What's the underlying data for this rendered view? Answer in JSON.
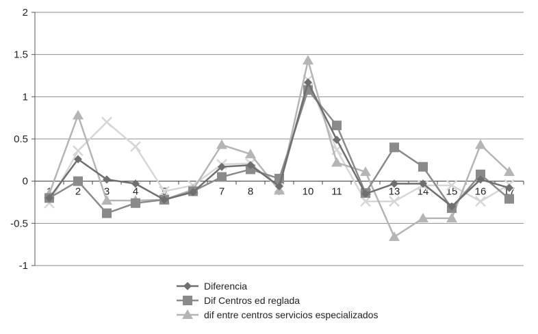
{
  "chart_data": {
    "type": "line",
    "title": "",
    "xlabel": "",
    "ylabel": "",
    "ylim": [
      -1,
      2
    ],
    "yticks": [
      "2",
      "1.5",
      "1",
      "0.5",
      "0",
      "-0.5",
      "-1"
    ],
    "ytick_values": [
      2,
      1.5,
      1,
      0.5,
      0,
      -0.5,
      -1
    ],
    "categories": [
      "1",
      "2",
      "3",
      "4",
      "5",
      "6",
      "7",
      "8",
      "9",
      "10",
      "11",
      "12",
      "13",
      "14",
      "15",
      "16",
      "17"
    ],
    "grid": true,
    "legend_position": "bottom",
    "series": [
      {
        "name": "Diferencia",
        "marker": "diamond",
        "color": "#6f6f6f",
        "values": [
          -0.2,
          0.26,
          0.02,
          -0.03,
          -0.22,
          -0.13,
          0.17,
          0.19,
          -0.06,
          1.17,
          0.49,
          -0.15,
          -0.03,
          -0.03,
          -0.3,
          0.02,
          -0.08
        ]
      },
      {
        "name": "Dif Centros ed reglada",
        "marker": "square",
        "color": "#8a8a8a",
        "values": [
          -0.2,
          0.0,
          -0.38,
          -0.26,
          -0.22,
          -0.12,
          0.05,
          0.14,
          0.03,
          1.08,
          0.66,
          -0.14,
          0.4,
          0.17,
          -0.32,
          0.08,
          -0.21
        ]
      },
      {
        "name": "dif  entre centros servicios especializados",
        "marker": "triangle",
        "color": "#b5b5b5",
        "values": [
          -0.15,
          0.78,
          -0.23,
          -0.23,
          -0.22,
          -0.1,
          0.43,
          0.32,
          -0.11,
          1.43,
          0.22,
          0.11,
          -0.66,
          -0.44,
          -0.44,
          0.43,
          0.11
        ]
      },
      {
        "name": "",
        "marker": "x",
        "color": "#d6d6d6",
        "values": [
          -0.26,
          0.36,
          0.7,
          0.41,
          -0.12,
          -0.05,
          0.2,
          0.21,
          -0.08,
          1.2,
          0.37,
          -0.24,
          -0.24,
          -0.05,
          -0.05,
          -0.24,
          -0.04
        ]
      }
    ]
  }
}
